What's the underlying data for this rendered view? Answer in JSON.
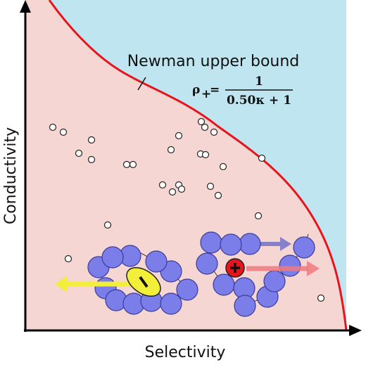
{
  "axes": {
    "x_label": "Selectivity",
    "y_label": "Conductivity"
  },
  "curve": {
    "label": "Newman upper bound",
    "formula": {
      "lhs": "ρ",
      "subscript": "+",
      "equals": "=",
      "numerator": "1",
      "denominator": "0.50κ + 1"
    }
  }
}
